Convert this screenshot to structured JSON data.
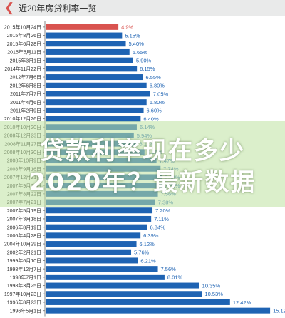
{
  "header": {
    "title": "近20年房贷利率一览",
    "back_icon": "back-arrow-icon"
  },
  "overlay": {
    "line1": "贷款利率现在多少",
    "line2": "2020年？最新数据"
  },
  "colors": {
    "bar": "#1e63b3",
    "highlight": "#d9534f",
    "label_normal": "#1e63b3",
    "label_highlight": "#d9534f",
    "axis": "#888888"
  },
  "chart_data": {
    "type": "bar",
    "orientation": "horizontal",
    "categories": [
      "2015年10月24日",
      "2015年8月26日",
      "2015年6月28日",
      "2015年5月11日",
      "2015年3月1日",
      "2014年11月22日",
      "2012年7月6日",
      "2012年6月8日",
      "2011年7月7日",
      "2011年4月6日",
      "2011年2月9日",
      "2010年12月26日",
      "2010年10月20日",
      "2008年12月23日",
      "2008年11月27日",
      "2008年10月30日",
      "2008年10月9日",
      "2008年9月16日",
      "2007年12月21日",
      "2007年9月15日",
      "2007年8月22日",
      "2007年7月21日",
      "2007年5月19日",
      "2007年3月18日",
      "2006年8月19日",
      "2006年4月28日",
      "2004年10月29日",
      "2002年2月21日",
      "1999年6月10日",
      "1998年12月7日",
      "1998年7月1日",
      "1998年3月25日",
      "1997年10月23日",
      "1996年8月23日",
      "1996年5月1日"
    ],
    "values": [
      4.9,
      5.15,
      5.4,
      5.65,
      5.9,
      6.15,
      6.55,
      6.8,
      7.05,
      6.8,
      6.6,
      6.4,
      6.14,
      5.94,
      6.12,
      6.66,
      7.47,
      7.74,
      7.83,
      7.83,
      7.56,
      7.38,
      7.2,
      7.11,
      6.84,
      6.39,
      6.12,
      5.76,
      6.21,
      7.56,
      8.01,
      10.35,
      10.53,
      12.42,
      15.12
    ],
    "value_labels": [
      "4.9%",
      "5.15%",
      "5.40%",
      "5.65%",
      "5.90%",
      "6.15%",
      "6.55%",
      "6.80%",
      "7.05%",
      "6.80%",
      "6.60%",
      "6.40%",
      "6.14%",
      "5.94%",
      "6.12%",
      "6.66%",
      "7.47%",
      "7.74%",
      "7.83%",
      "7.83%",
      "7.56%",
      "7.38%",
      "7.20%",
      "7.11%",
      "6.84%",
      "6.39%",
      "6.12%",
      "5.76%",
      "6.21%",
      "7.56%",
      "8.01%",
      "10.35%",
      "10.53%",
      "12.42%",
      "15.12%"
    ],
    "highlight_index": 0,
    "xlim": [
      0,
      15.5
    ],
    "grid": false,
    "legend": "none"
  }
}
